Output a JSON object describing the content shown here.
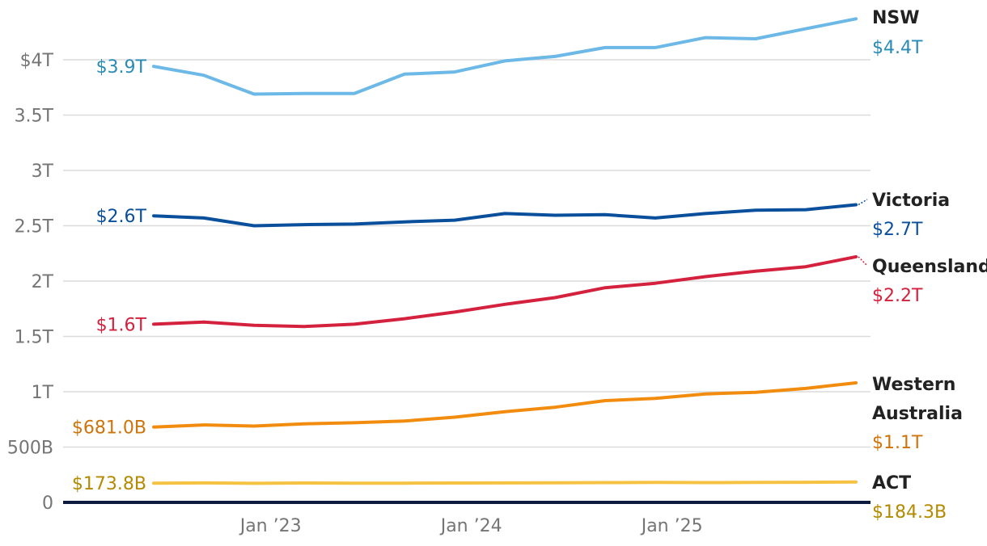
{
  "chart_data": {
    "type": "line",
    "title": "",
    "xlabel": "",
    "ylabel": "",
    "x": [
      "Jun 2022",
      "Sep 2022",
      "Dec 2022",
      "Mar 2023",
      "Jun 2023",
      "Sep 2023",
      "Dec 2023",
      "Mar 2024",
      "Jun 2024",
      "Sep 2024",
      "Dec 2024",
      "Mar 2025",
      "Jun 2025",
      "Sep 2025",
      "Dec 2025"
    ],
    "x_ticks": [
      {
        "x": "Jan 2023",
        "label": "Jan ’23"
      },
      {
        "x": "Jan 2024",
        "label": "Jan ’24"
      },
      {
        "x": "Jan 2025",
        "label": "Jan ’25"
      }
    ],
    "y_ticks": [
      {
        "value": 0,
        "label": "0"
      },
      {
        "value": 500,
        "label": "500B"
      },
      {
        "value": 1000,
        "label": "1T"
      },
      {
        "value": 1500,
        "label": "1.5T"
      },
      {
        "value": 2000,
        "label": "2T"
      },
      {
        "value": 2500,
        "label": "2.5T"
      },
      {
        "value": 3000,
        "label": "3T"
      },
      {
        "value": 3500,
        "label": "3.5T"
      },
      {
        "value": 4000,
        "label": "$4T"
      }
    ],
    "ylim": [
      0,
      4400
    ],
    "y_unit": "billions AUD",
    "grid": true,
    "legend": "labels at line ends",
    "series": [
      {
        "name": "NSW",
        "color": "#6cb8e6",
        "label_color": "#2a8bb8",
        "start_label": "$3.9T",
        "end_label": "$4.4T",
        "values": [
          3940,
          3860,
          3690,
          3695,
          3695,
          3870,
          3890,
          3990,
          4030,
          4110,
          4110,
          4200,
          4190,
          4280,
          4370
        ]
      },
      {
        "name": "Victoria",
        "color": "#0a4f9c",
        "label_color": "#0a4f9c",
        "start_label": "$2.6T",
        "end_label": "$2.7T",
        "values": [
          2590,
          2570,
          2500,
          2510,
          2515,
          2535,
          2550,
          2610,
          2595,
          2600,
          2570,
          2610,
          2640,
          2645,
          2690
        ]
      },
      {
        "name": "Queensland",
        "color": "#d4213d",
        "label_color": "#d4213d",
        "start_label": "$1.6T",
        "end_label": "$2.2T",
        "values": [
          1610,
          1630,
          1600,
          1590,
          1610,
          1660,
          1720,
          1790,
          1850,
          1940,
          1980,
          2040,
          2090,
          2130,
          2220
        ]
      },
      {
        "name": "Western Australia",
        "name_lines": [
          "Western",
          "Australia"
        ],
        "color": "#f28c0f",
        "label_color": "#d0740a",
        "start_label": "$681.0B",
        "end_label": "$1.1T",
        "values": [
          681,
          700,
          690,
          710,
          720,
          735,
          770,
          820,
          860,
          920,
          940,
          980,
          995,
          1030,
          1080
        ]
      },
      {
        "name": "ACT",
        "color": "#f5c242",
        "label_color": "#b48a00",
        "start_label": "$173.8B",
        "end_label": "$184.3B",
        "values": [
          173.8,
          176,
          172,
          175,
          174,
          174,
          175,
          176,
          177,
          179,
          180,
          179,
          180,
          182,
          184.3
        ]
      }
    ]
  }
}
